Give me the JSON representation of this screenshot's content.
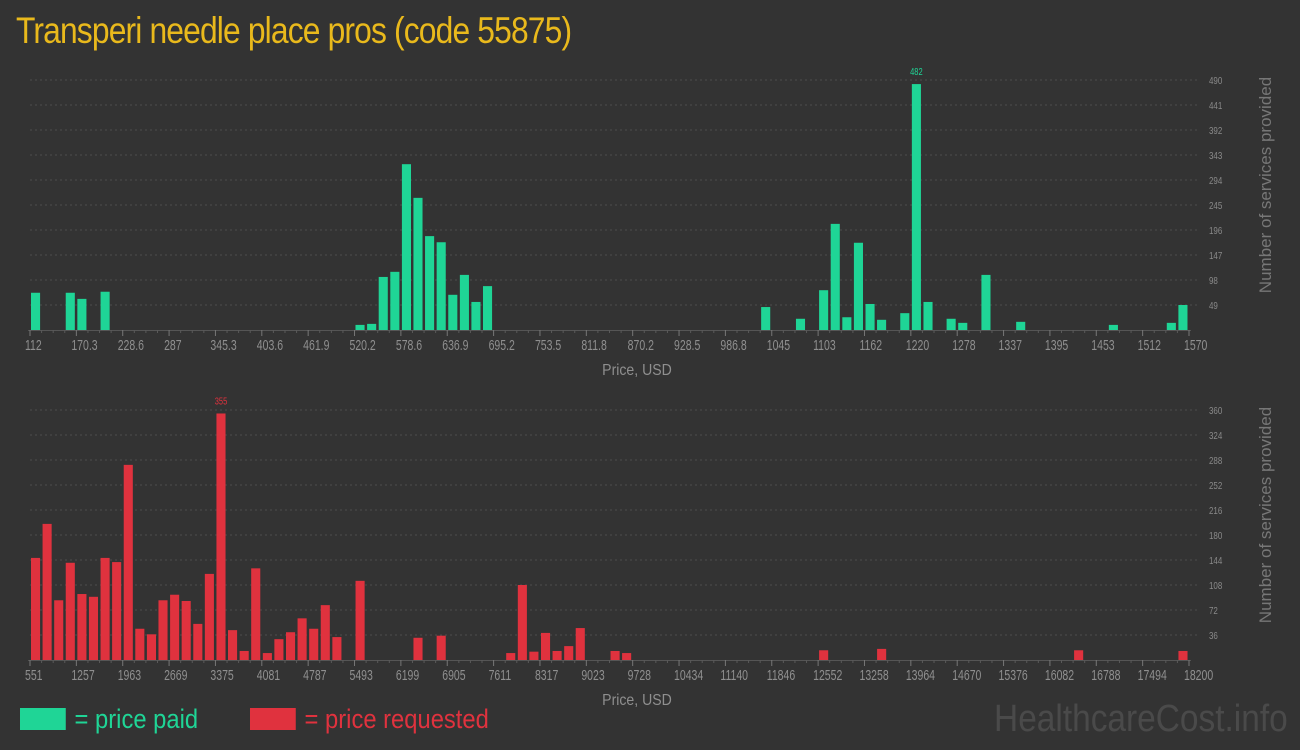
{
  "title": "Transperi needle place pros (code 55875)",
  "colors": {
    "paid": "#1fd596",
    "requested": "#e0323e",
    "title": "#e9b91c",
    "background": "#333333"
  },
  "legend": {
    "paid": "= price paid",
    "requested": "= price requested"
  },
  "watermark": "HealthcareCost.info",
  "chart_data": [
    {
      "type": "bar",
      "name": "price paid",
      "xlabel": "Price, USD",
      "ylabel": "Number of services provided",
      "xlim": [
        112,
        1570
      ],
      "ylim": [
        0,
        490
      ],
      "grid": true,
      "x_ticks": [
        "112",
        "170.3",
        "228.6",
        "287",
        "345.3",
        "403.6",
        "461.9",
        "520.2",
        "578.6",
        "636.9",
        "695.2",
        "753.5",
        "811.8",
        "870.2",
        "928.5",
        "986.8",
        "1045",
        "1103",
        "1162",
        "1220",
        "1278",
        "1337",
        "1395",
        "1453",
        "1512",
        "1570"
      ],
      "y_ticks": [
        "49",
        "98",
        "147",
        "196",
        "245",
        "294",
        "343",
        "392",
        "441",
        "490"
      ],
      "max_label": "482",
      "x": [
        112,
        155.7,
        170.3,
        199.5,
        520.2,
        534.8,
        549.4,
        564.0,
        578.6,
        593.1,
        607.7,
        622.3,
        636.9,
        651.5,
        666.0,
        680.6,
        1030.5,
        1074.3,
        1103.4,
        1118.0,
        1132.6,
        1147.2,
        1161.8,
        1176.3,
        1205.5,
        1220.1,
        1234.7,
        1263.8,
        1278.4,
        1307.6,
        1351.3,
        1467.9,
        1540.8,
        1555.4
      ],
      "values": [
        73,
        73,
        61,
        75,
        10,
        12,
        104,
        114,
        325,
        259,
        184,
        172,
        69,
        108,
        55,
        86,
        45,
        22,
        78,
        208,
        25,
        171,
        51,
        20,
        33,
        482,
        55,
        22,
        14,
        108,
        16,
        10,
        14,
        49
      ]
    },
    {
      "type": "bar",
      "name": "price requested",
      "xlabel": "Price, USD",
      "ylabel": "Number of services provided",
      "xlim": [
        551,
        18200
      ],
      "ylim": [
        0,
        360
      ],
      "grid": true,
      "x_ticks": [
        "551",
        "1257",
        "1963",
        "2669",
        "3375",
        "4081",
        "4787",
        "5493",
        "6199",
        "6905",
        "7611",
        "8317",
        "9023",
        "9728",
        "10434",
        "11140",
        "11846",
        "12552",
        "13258",
        "13964",
        "14670",
        "15376",
        "16082",
        "16788",
        "17494",
        "18200"
      ],
      "y_ticks": [
        "36",
        "72",
        "108",
        "144",
        "180",
        "216",
        "252",
        "288",
        "324",
        "360"
      ],
      "max_label": "355",
      "x": [
        551,
        727,
        904,
        1080,
        1257,
        1433,
        1610,
        1786,
        1963,
        2139,
        2316,
        2492,
        2669,
        2845,
        3022,
        3198,
        3375,
        3551,
        3728,
        3904,
        4081,
        4257,
        4434,
        4610,
        4787,
        4963,
        5140,
        5493,
        6375,
        6728,
        7787,
        7964,
        8140,
        8317,
        8493,
        8670,
        8846,
        9376,
        9552,
        12552,
        13435,
        16435,
        18024
      ],
      "values": [
        147,
        196,
        86,
        140,
        95,
        91,
        147,
        141,
        281,
        45,
        37,
        86,
        94,
        85,
        52,
        124,
        355,
        43,
        13,
        132,
        10,
        30,
        40,
        60,
        45,
        79,
        33,
        114,
        32,
        35,
        10,
        108,
        12,
        39,
        13,
        20,
        46,
        13,
        10,
        14,
        16,
        14,
        13
      ]
    }
  ]
}
